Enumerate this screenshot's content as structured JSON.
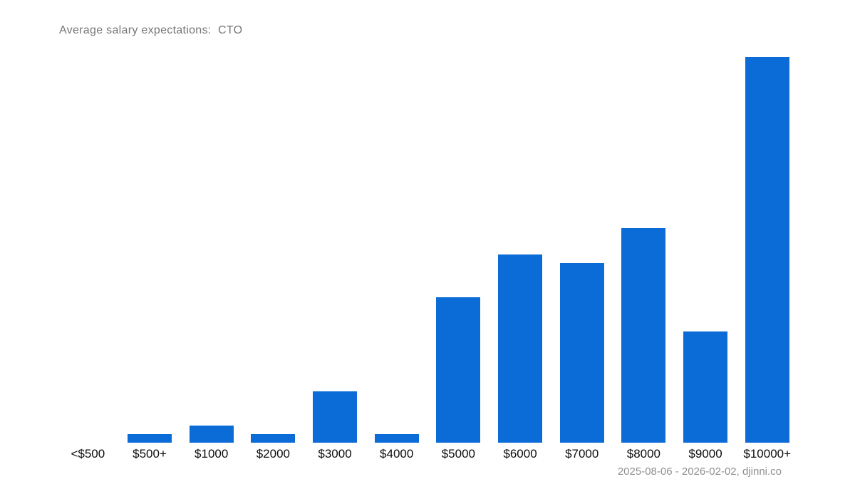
{
  "title": "Average salary expectations:  CTO",
  "footer": "2025-08-06 - 2026-02-02, djinni.co",
  "colors": {
    "background": "#ffffff",
    "bar": "#0b6cd8",
    "title_text": "#767676",
    "tick_label_text": "#0d0d0d",
    "footer_text": "#8f8f8f"
  },
  "chart_data": {
    "type": "bar",
    "categories": [
      "<$500",
      "$500+",
      "$1000",
      "$2000",
      "$3000",
      "$4000",
      "$5000",
      "$6000",
      "$7000",
      "$8000",
      "$9000",
      "$10000+"
    ],
    "values": [
      0,
      1,
      2,
      1,
      6,
      1,
      17,
      22,
      21,
      25,
      13,
      45
    ],
    "title": "Average salary expectations:  CTO",
    "xlabel": "",
    "ylabel": "",
    "ylim": [
      0,
      45
    ],
    "grid": false,
    "legend": false,
    "y_axis_visible": false,
    "bar_color": "#0b6cd8",
    "annotation": "2025-08-06 - 2026-02-02, djinni.co"
  }
}
